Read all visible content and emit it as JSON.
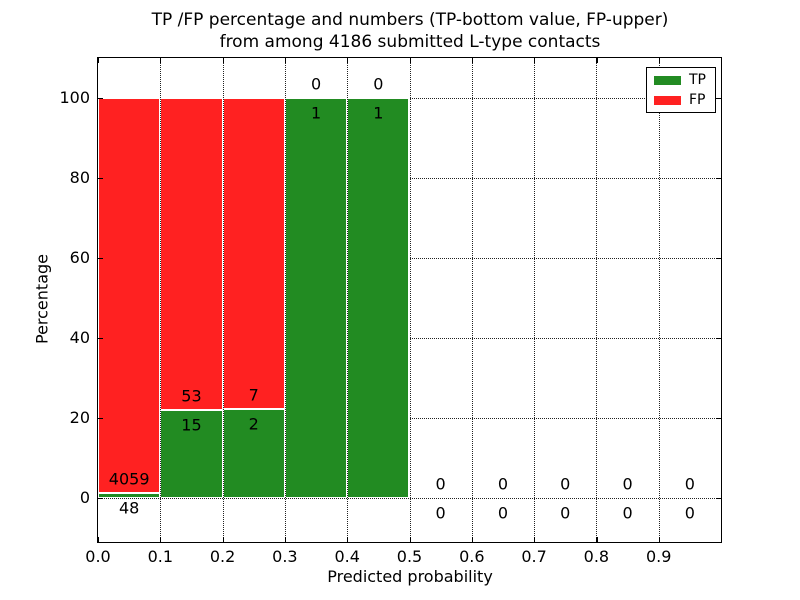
{
  "chart_data": {
    "type": "bar",
    "variant": "stacked-percentage-histogram",
    "title_line1": "TP /FP percentage and numbers (TP-bottom value, FP-upper)",
    "title_line2": "from among 4186 submitted L-type contacts",
    "xlabel": "Predicted probability",
    "ylabel": "Percentage",
    "xlim": [
      0.0,
      1.0
    ],
    "ylim": [
      -11,
      110
    ],
    "x_ticks": [
      "0.0",
      "0.1",
      "0.2",
      "0.3",
      "0.4",
      "0.5",
      "0.6",
      "0.7",
      "0.8",
      "0.9"
    ],
    "y_ticks": [
      0,
      20,
      40,
      60,
      80,
      100
    ],
    "grid": "dotted",
    "total_submitted": 4186,
    "colors": {
      "tp": "#228b22",
      "fp": "#ff2121",
      "frame": "#000000",
      "background": "#ffffff",
      "grid": "#222222"
    },
    "legend": {
      "position": "upper-right",
      "entries": [
        {
          "label": "TP",
          "color_key": "tp"
        },
        {
          "label": "FP",
          "color_key": "fp"
        }
      ]
    },
    "bin_width": 0.1,
    "bins": [
      {
        "x_start": 0.0,
        "x_end": 0.1,
        "tp_count": 48,
        "fp_count": 4059,
        "tp_pct": 1.17,
        "fp_pct": 98.83
      },
      {
        "x_start": 0.1,
        "x_end": 0.2,
        "tp_count": 15,
        "fp_count": 53,
        "tp_pct": 22.06,
        "fp_pct": 77.94
      },
      {
        "x_start": 0.2,
        "x_end": 0.3,
        "tp_count": 2,
        "fp_count": 7,
        "tp_pct": 22.22,
        "fp_pct": 77.78
      },
      {
        "x_start": 0.3,
        "x_end": 0.4,
        "tp_count": 1,
        "fp_count": 0,
        "tp_pct": 100,
        "fp_pct": 0
      },
      {
        "x_start": 0.4,
        "x_end": 0.5,
        "tp_count": 1,
        "fp_count": 0,
        "tp_pct": 100,
        "fp_pct": 0
      },
      {
        "x_start": 0.5,
        "x_end": 0.6,
        "tp_count": 0,
        "fp_count": 0,
        "tp_pct": 0,
        "fp_pct": 0
      },
      {
        "x_start": 0.6,
        "x_end": 0.7,
        "tp_count": 0,
        "fp_count": 0,
        "tp_pct": 0,
        "fp_pct": 0
      },
      {
        "x_start": 0.7,
        "x_end": 0.8,
        "tp_count": 0,
        "fp_count": 0,
        "tp_pct": 0,
        "fp_pct": 0
      },
      {
        "x_start": 0.8,
        "x_end": 0.9,
        "tp_count": 0,
        "fp_count": 0,
        "tp_pct": 0,
        "fp_pct": 0
      },
      {
        "x_start": 0.9,
        "x_end": 1.0,
        "tp_count": 0,
        "fp_count": 0,
        "tp_pct": 0,
        "fp_pct": 0
      }
    ]
  }
}
